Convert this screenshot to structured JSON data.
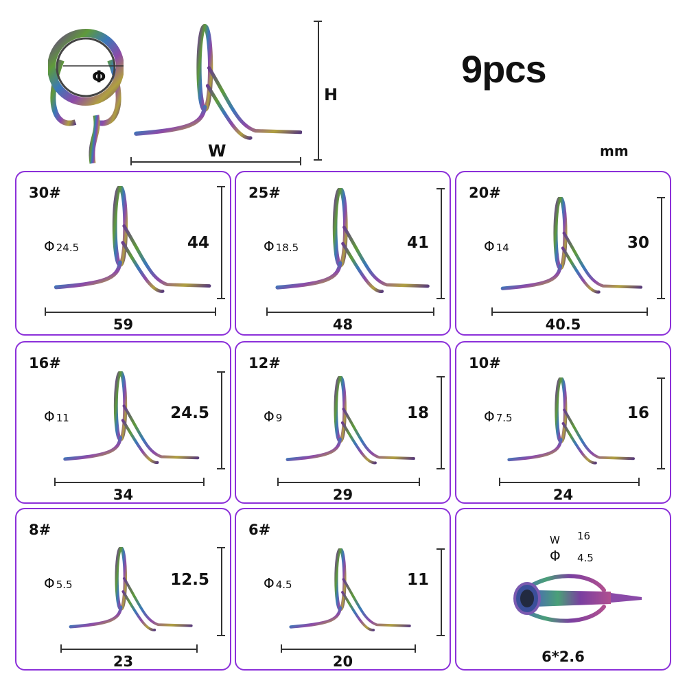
{
  "header": {
    "title": "9pcs",
    "unit": "mm",
    "diameter_symbol": "Φ",
    "height_label": "H",
    "width_label": "W"
  },
  "colors": {
    "card_border": "#8b2fd9",
    "text": "#111111"
  },
  "cards": [
    {
      "size": "30#",
      "diameter": "24.5",
      "height": "44",
      "width": "59"
    },
    {
      "size": "25#",
      "diameter": "18.5",
      "height": "41",
      "width": "48"
    },
    {
      "size": "20#",
      "diameter": "14",
      "height": "30",
      "width": "40.5"
    },
    {
      "size": "16#",
      "diameter": "11",
      "height": "24.5",
      "width": "34"
    },
    {
      "size": "12#",
      "diameter": "9",
      "height": "18",
      "width": "29"
    },
    {
      "size": "10#",
      "diameter": "7.5",
      "height": "16",
      "width": "24"
    },
    {
      "size": "8#",
      "diameter": "5.5",
      "height": "12.5",
      "width": "23"
    },
    {
      "size": "6#",
      "diameter": "4.5",
      "height": "11",
      "width": "20"
    }
  ],
  "tip_top": {
    "width_label": "W",
    "width_value": "16",
    "diameter_symbol": "Φ",
    "diameter_value": "4.5",
    "size": "6*2.6"
  }
}
